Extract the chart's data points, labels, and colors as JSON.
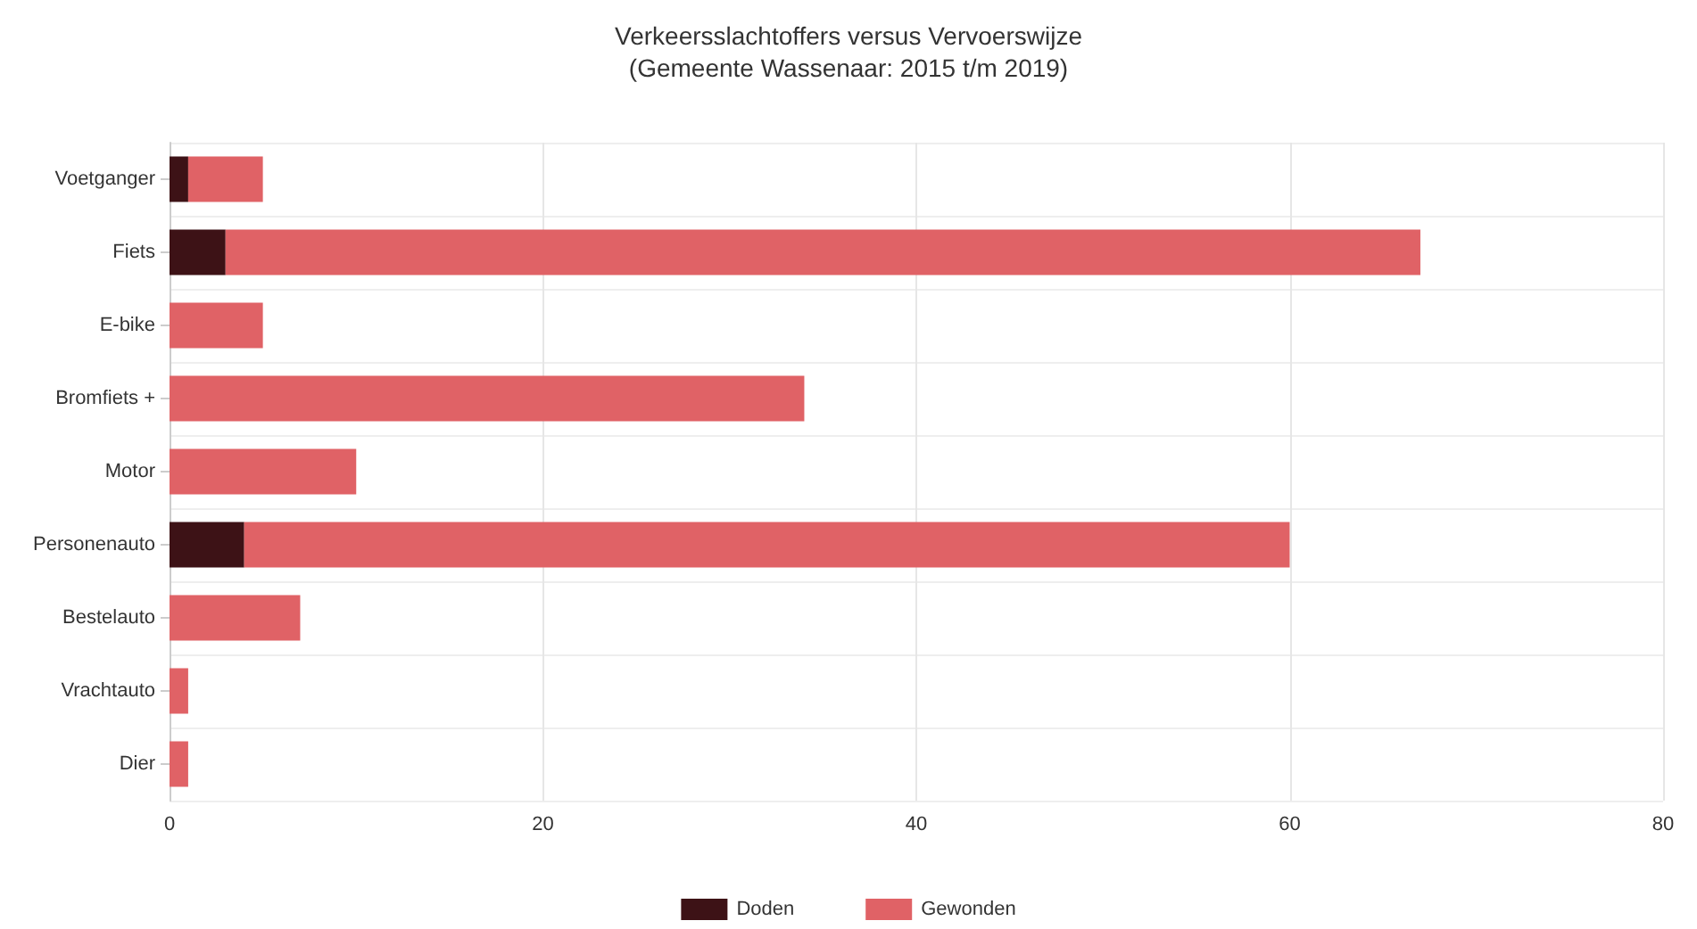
{
  "chart_data": {
    "type": "bar",
    "title": "Verkeersslachtoffers versus Vervoerswijze",
    "subtitle": "(Gemeente Wassenaar: 2015 t/m 2019)",
    "orientation": "horizontal",
    "stacked": true,
    "categories": [
      "Voetganger",
      "Fiets",
      "E-bike",
      "Bromfiets +",
      "Motor",
      "Personenauto",
      "Bestelauto",
      "Vrachtauto",
      "Dier"
    ],
    "series": [
      {
        "name": "Doden",
        "color": "#3d1216",
        "values": [
          1,
          3,
          0,
          0,
          0,
          4,
          0,
          0,
          0
        ]
      },
      {
        "name": "Gewonden",
        "color": "#e06266",
        "values": [
          4,
          64,
          5,
          34,
          10,
          56,
          7,
          1,
          1
        ]
      }
    ],
    "xlim": [
      0,
      80
    ],
    "xticks": [
      0,
      20,
      40,
      60,
      80
    ],
    "grid": true,
    "legend": "bottom"
  }
}
